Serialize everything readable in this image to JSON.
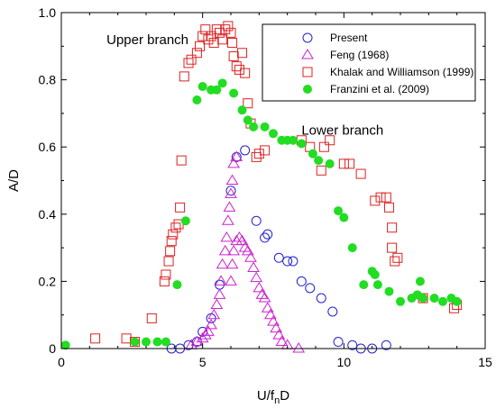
{
  "chart_data": {
    "type": "scatter",
    "xlabel": "U/f",
    "xlabel_sub": "n",
    "xlabel_tail": "D",
    "ylabel": "A/D",
    "xlim": [
      0,
      15
    ],
    "ylim": [
      0,
      1.0
    ],
    "xticks": [
      {
        "value": 0,
        "label": "0"
      },
      {
        "value": 5,
        "label": "5"
      },
      {
        "value": 10,
        "label": "10"
      },
      {
        "value": 15,
        "label": "15"
      }
    ],
    "yticks": [
      {
        "value": 0,
        "label": "0"
      },
      {
        "value": 0.2,
        "label": "0.2"
      },
      {
        "value": 0.4,
        "label": "0.4"
      },
      {
        "value": 0.6,
        "label": "0.6"
      },
      {
        "value": 0.8,
        "label": "0.8"
      },
      {
        "value": 1.0,
        "label": "1.0"
      }
    ],
    "grid": false,
    "legend_position": "top-right",
    "annotations": [
      {
        "text": "Upper branch",
        "x": 1.6,
        "y": 0.92
      },
      {
        "text": "Lower branch",
        "x": 8.5,
        "y": 0.65
      }
    ],
    "series": [
      {
        "name": "Present",
        "marker": "circle-open",
        "color": "#2222cc",
        "points": [
          [
            3.9,
            0.0
          ],
          [
            4.2,
            0.0
          ],
          [
            4.5,
            0.01
          ],
          [
            4.8,
            0.02
          ],
          [
            5.0,
            0.05
          ],
          [
            5.3,
            0.09
          ],
          [
            5.6,
            0.19
          ],
          [
            6.0,
            0.47
          ],
          [
            6.2,
            0.57
          ],
          [
            6.5,
            0.59
          ],
          [
            6.9,
            0.38
          ],
          [
            7.2,
            0.33
          ],
          [
            7.3,
            0.34
          ],
          [
            7.7,
            0.27
          ],
          [
            8.0,
            0.26
          ],
          [
            8.2,
            0.26
          ],
          [
            8.5,
            0.2
          ],
          [
            8.8,
            0.18
          ],
          [
            9.2,
            0.15
          ],
          [
            9.6,
            0.11
          ],
          [
            9.8,
            0.02
          ],
          [
            10.3,
            0.01
          ],
          [
            10.6,
            0.0
          ],
          [
            11.0,
            0.0
          ],
          [
            11.5,
            0.01
          ]
        ]
      },
      {
        "name": "Feng (1968)",
        "marker": "triangle-open",
        "color": "#cc22cc",
        "points": [
          [
            4.6,
            0.01
          ],
          [
            4.8,
            0.02
          ],
          [
            5.0,
            0.03
          ],
          [
            5.1,
            0.04
          ],
          [
            5.2,
            0.05
          ],
          [
            5.3,
            0.07
          ],
          [
            5.4,
            0.1
          ],
          [
            5.5,
            0.13
          ],
          [
            5.6,
            0.16
          ],
          [
            5.65,
            0.2
          ],
          [
            5.7,
            0.25
          ],
          [
            5.8,
            0.29
          ],
          [
            5.85,
            0.33
          ],
          [
            5.9,
            0.38
          ],
          [
            5.95,
            0.42
          ],
          [
            6.0,
            0.46
          ],
          [
            6.05,
            0.5
          ],
          [
            6.1,
            0.55
          ],
          [
            6.2,
            0.57
          ],
          [
            6.0,
            0.2
          ],
          [
            6.05,
            0.25
          ],
          [
            6.1,
            0.29
          ],
          [
            6.2,
            0.32
          ],
          [
            6.3,
            0.33
          ],
          [
            6.4,
            0.32
          ],
          [
            6.5,
            0.3
          ],
          [
            6.6,
            0.29
          ],
          [
            6.7,
            0.27
          ],
          [
            6.8,
            0.24
          ],
          [
            6.9,
            0.21
          ],
          [
            7.0,
            0.18
          ],
          [
            7.1,
            0.16
          ],
          [
            7.2,
            0.15
          ],
          [
            7.3,
            0.12
          ],
          [
            7.4,
            0.1
          ],
          [
            7.5,
            0.08
          ],
          [
            7.6,
            0.06
          ],
          [
            7.7,
            0.04
          ],
          [
            7.8,
            0.02
          ],
          [
            8.0,
            0.01
          ],
          [
            8.4,
            0.0
          ]
        ]
      },
      {
        "name": "Khalak and Williamson (1999)",
        "marker": "square-open",
        "color": "#dd2222",
        "points": [
          [
            1.2,
            0.03
          ],
          [
            2.3,
            0.03
          ],
          [
            2.6,
            0.02
          ],
          [
            3.2,
            0.09
          ],
          [
            3.65,
            0.2
          ],
          [
            3.7,
            0.22
          ],
          [
            3.8,
            0.26
          ],
          [
            3.85,
            0.29
          ],
          [
            3.9,
            0.32
          ],
          [
            3.95,
            0.34
          ],
          [
            4.05,
            0.36
          ],
          [
            4.15,
            0.37
          ],
          [
            4.2,
            0.42
          ],
          [
            4.25,
            0.56
          ],
          [
            4.35,
            0.81
          ],
          [
            4.5,
            0.85
          ],
          [
            4.6,
            0.86
          ],
          [
            4.8,
            0.88
          ],
          [
            4.9,
            0.9
          ],
          [
            5.0,
            0.93
          ],
          [
            5.1,
            0.95
          ],
          [
            5.2,
            0.92
          ],
          [
            5.3,
            0.93
          ],
          [
            5.4,
            0.91
          ],
          [
            5.5,
            0.95
          ],
          [
            5.6,
            0.94
          ],
          [
            5.7,
            0.92
          ],
          [
            5.8,
            0.95
          ],
          [
            5.9,
            0.96
          ],
          [
            6.0,
            0.94
          ],
          [
            6.05,
            0.91
          ],
          [
            6.1,
            0.87
          ],
          [
            6.2,
            0.84
          ],
          [
            6.3,
            0.83
          ],
          [
            6.4,
            0.88
          ],
          [
            6.5,
            0.82
          ],
          [
            6.6,
            0.73
          ],
          [
            6.7,
            0.67
          ],
          [
            6.9,
            0.57
          ],
          [
            7.0,
            0.58
          ],
          [
            7.2,
            0.59
          ],
          [
            8.5,
            0.62
          ],
          [
            8.8,
            0.6
          ],
          [
            9.3,
            0.6
          ],
          [
            9.5,
            0.62
          ],
          [
            9.2,
            0.53
          ],
          [
            10.0,
            0.55
          ],
          [
            10.2,
            0.55
          ],
          [
            10.6,
            0.52
          ],
          [
            11.1,
            0.44
          ],
          [
            11.3,
            0.45
          ],
          [
            11.5,
            0.45
          ],
          [
            11.6,
            0.42
          ],
          [
            11.7,
            0.36
          ],
          [
            11.7,
            0.3
          ],
          [
            11.8,
            0.26
          ],
          [
            11.9,
            0.27
          ],
          [
            12.8,
            0.15
          ],
          [
            13.9,
            0.12
          ],
          [
            14.0,
            0.13
          ]
        ]
      },
      {
        "name": "Franzini et al. (2009)",
        "marker": "circle-filled",
        "color": "#22dd22",
        "points": [
          [
            0.15,
            0.01
          ],
          [
            2.6,
            0.02
          ],
          [
            3.0,
            0.02
          ],
          [
            3.4,
            0.02
          ],
          [
            3.7,
            0.02
          ],
          [
            4.1,
            0.19
          ],
          [
            4.4,
            0.38
          ],
          [
            4.8,
            0.74
          ],
          [
            5.0,
            0.78
          ],
          [
            5.3,
            0.77
          ],
          [
            5.5,
            0.77
          ],
          [
            5.7,
            0.79
          ],
          [
            6.1,
            0.76
          ],
          [
            6.4,
            0.71
          ],
          [
            6.6,
            0.68
          ],
          [
            6.8,
            0.66
          ],
          [
            7.2,
            0.66
          ],
          [
            7.5,
            0.64
          ],
          [
            7.8,
            0.62
          ],
          [
            8.0,
            0.62
          ],
          [
            8.2,
            0.62
          ],
          [
            8.5,
            0.61
          ],
          [
            8.9,
            0.58
          ],
          [
            9.1,
            0.56
          ],
          [
            9.5,
            0.55
          ],
          [
            9.8,
            0.41
          ],
          [
            10.0,
            0.39
          ],
          [
            10.3,
            0.3
          ],
          [
            10.7,
            0.19
          ],
          [
            11.0,
            0.23
          ],
          [
            11.1,
            0.22
          ],
          [
            11.2,
            0.19
          ],
          [
            11.6,
            0.17
          ],
          [
            12.0,
            0.14
          ],
          [
            12.4,
            0.15
          ],
          [
            12.6,
            0.16
          ],
          [
            12.8,
            0.15
          ],
          [
            13.2,
            0.15
          ],
          [
            13.5,
            0.14
          ],
          [
            13.8,
            0.15
          ],
          [
            14.0,
            0.14
          ],
          [
            12.7,
            0.2
          ]
        ]
      }
    ]
  }
}
